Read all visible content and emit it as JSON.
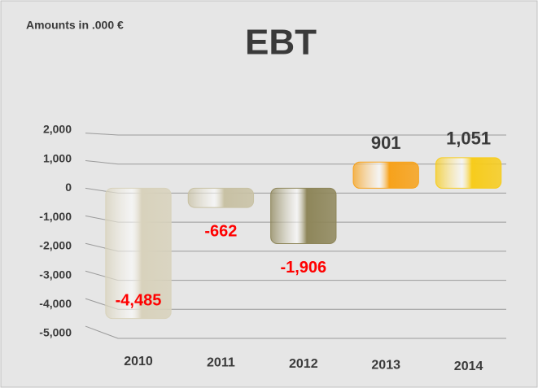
{
  "chart_data": {
    "type": "bar",
    "title": "EBT",
    "subtitle": "Amounts in .000 €",
    "categories": [
      "2010",
      "2011",
      "2012",
      "2013",
      "2014"
    ],
    "values": [
      -4485,
      -662,
      -1906,
      901,
      1051
    ],
    "value_labels": [
      "-4,485",
      "-662",
      "-1,906",
      "901",
      "1,051"
    ],
    "colors": [
      "#d8d2bc",
      "#c8c1a4",
      "#8e865a",
      "#f7a21b",
      "#f7cc1c"
    ],
    "value_label_colors": [
      "#ff0000",
      "#ff0000",
      "#ff0000",
      "#3a3a3a",
      "#3a3a3a"
    ],
    "ylim": [
      -5000,
      2000
    ],
    "yticks": [
      {
        "value": 2000,
        "label": "2,000"
      },
      {
        "value": 1000,
        "label": "1,000"
      },
      0,
      {
        "value": -1000,
        "label": "-1,000"
      },
      {
        "value": -2000,
        "label": "-2,000"
      },
      {
        "value": -3000,
        "label": "-3,000"
      },
      {
        "value": -4000,
        "label": "-4,000"
      },
      {
        "value": -5000,
        "label": "-5,000"
      }
    ],
    "grid": true
  }
}
